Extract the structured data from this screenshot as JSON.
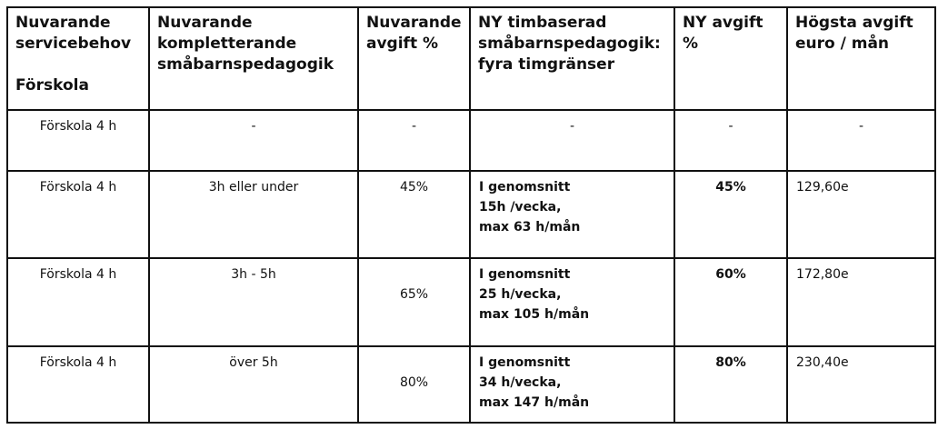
{
  "header": {
    "col1": [
      "Nuvarande",
      "servicebehov",
      "Förskola"
    ],
    "col2": [
      "Nuvarande",
      "kompletterande",
      "småbarnspedagogik"
    ],
    "col3": [
      "Nuvarande",
      "avgift %"
    ],
    "col4": [
      "NY timbaserad",
      "småbarnspedagogik:",
      "fyra timgränser"
    ],
    "col5": [
      "NY avgift",
      "%"
    ],
    "col6": [
      "Högsta avgift",
      "euro / mån"
    ]
  },
  "rows": [
    {
      "service": "Förskola 4 h",
      "complementary": "-",
      "current_fee": "-",
      "new_hours": [
        "-"
      ],
      "new_fee": "-",
      "max_fee": "-"
    },
    {
      "service": "Förskola 4 h",
      "complementary": "3h eller under",
      "current_fee": "45%",
      "new_hours": [
        "I genomsnitt",
        "15h /vecka,",
        "max 63 h/mån"
      ],
      "new_fee": "45%",
      "max_fee": "129,60e"
    },
    {
      "service": "Förskola 4 h",
      "complementary": "3h - 5h",
      "current_fee": "65%",
      "new_hours": [
        "I genomsnitt",
        "25 h/vecka,",
        "max 105 h/mån"
      ],
      "new_fee": "60%",
      "max_fee": "172,80e"
    },
    {
      "service": "Förskola 4 h",
      "complementary": "över 5h",
      "current_fee": "80%",
      "new_hours": [
        "I genomsnitt",
        "34 h/vecka,",
        "max 147 h/mån"
      ],
      "new_fee": "80%",
      "max_fee": "230,40e"
    }
  ]
}
